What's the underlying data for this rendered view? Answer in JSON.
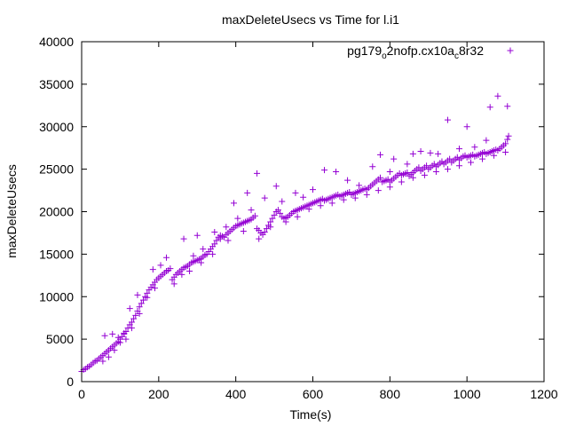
{
  "chart_data": {
    "type": "scatter",
    "title": "maxDeleteUsecs vs Time for l.i1",
    "xlabel": "Time(s)",
    "ylabel": "maxDeleteUsecs",
    "xlim": [
      0,
      1200
    ],
    "ylim": [
      0,
      40000
    ],
    "xticks": [
      "0",
      "200",
      "400",
      "600",
      "800",
      "1000",
      "1200"
    ],
    "yticks": [
      "0",
      "5000",
      "10000",
      "15000",
      "20000",
      "25000",
      "30000",
      "35000",
      "40000"
    ],
    "grid": false,
    "legend_position": "top-right",
    "marker": "plus",
    "series": [
      {
        "name_parts": [
          "pg179",
          "o",
          "2nofp.cx10a",
          "c",
          "8r32"
        ],
        "color": "#9400d3",
        "points": [
          [
            0,
            1200
          ],
          [
            5,
            1400
          ],
          [
            10,
            1500
          ],
          [
            15,
            1700
          ],
          [
            20,
            1800
          ],
          [
            25,
            2000
          ],
          [
            30,
            2200
          ],
          [
            35,
            2400
          ],
          [
            40,
            2500
          ],
          [
            45,
            2700
          ],
          [
            50,
            2900
          ],
          [
            55,
            3100
          ],
          [
            60,
            3300
          ],
          [
            65,
            3500
          ],
          [
            70,
            3700
          ],
          [
            75,
            3900
          ],
          [
            80,
            4100
          ],
          [
            85,
            4300
          ],
          [
            90,
            4500
          ],
          [
            95,
            4700
          ],
          [
            100,
            5000
          ],
          [
            105,
            5300
          ],
          [
            110,
            5600
          ],
          [
            115,
            5900
          ],
          [
            120,
            6300
          ],
          [
            125,
            6700
          ],
          [
            130,
            7000
          ],
          [
            135,
            7400
          ],
          [
            140,
            7800
          ],
          [
            145,
            8300
          ],
          [
            150,
            8800
          ],
          [
            155,
            9200
          ],
          [
            160,
            9600
          ],
          [
            165,
            10000
          ],
          [
            170,
            10400
          ],
          [
            175,
            10800
          ],
          [
            180,
            11100
          ],
          [
            185,
            11400
          ],
          [
            190,
            11700
          ],
          [
            195,
            12000
          ],
          [
            200,
            12200
          ],
          [
            205,
            12400
          ],
          [
            210,
            12600
          ],
          [
            215,
            12800
          ],
          [
            220,
            13000
          ],
          [
            225,
            13100
          ],
          [
            230,
            13300
          ],
          [
            235,
            12000
          ],
          [
            240,
            12300
          ],
          [
            245,
            12600
          ],
          [
            250,
            12800
          ],
          [
            255,
            13000
          ],
          [
            260,
            13200
          ],
          [
            265,
            13400
          ],
          [
            270,
            13500
          ],
          [
            275,
            13600
          ],
          [
            280,
            13800
          ],
          [
            285,
            14000
          ],
          [
            290,
            14100
          ],
          [
            295,
            14200
          ],
          [
            300,
            14300
          ],
          [
            305,
            14400
          ],
          [
            310,
            14500
          ],
          [
            315,
            14700
          ],
          [
            320,
            14900
          ],
          [
            325,
            15000
          ],
          [
            330,
            15300
          ],
          [
            335,
            15600
          ],
          [
            340,
            15900
          ],
          [
            345,
            16200
          ],
          [
            350,
            16600
          ],
          [
            355,
            17000
          ],
          [
            360,
            17200
          ],
          [
            365,
            17100
          ],
          [
            370,
            17000
          ],
          [
            375,
            17300
          ],
          [
            380,
            17500
          ],
          [
            385,
            17700
          ],
          [
            390,
            17900
          ],
          [
            395,
            18100
          ],
          [
            400,
            18300
          ],
          [
            405,
            18400
          ],
          [
            410,
            18500
          ],
          [
            415,
            18600
          ],
          [
            420,
            18700
          ],
          [
            425,
            18800
          ],
          [
            430,
            18900
          ],
          [
            435,
            19000
          ],
          [
            440,
            19100
          ],
          [
            445,
            19300
          ],
          [
            450,
            19500
          ],
          [
            455,
            18000
          ],
          [
            460,
            17800
          ],
          [
            465,
            17500
          ],
          [
            470,
            17300
          ],
          [
            475,
            17600
          ],
          [
            480,
            18000
          ],
          [
            485,
            18400
          ],
          [
            490,
            18800
          ],
          [
            495,
            19200
          ],
          [
            500,
            19600
          ],
          [
            505,
            20000
          ],
          [
            510,
            20200
          ],
          [
            515,
            19800
          ],
          [
            520,
            19400
          ],
          [
            525,
            19200
          ],
          [
            530,
            19300
          ],
          [
            535,
            19400
          ],
          [
            540,
            19600
          ],
          [
            545,
            19800
          ],
          [
            550,
            20000
          ],
          [
            555,
            20100
          ],
          [
            560,
            20200
          ],
          [
            565,
            20300
          ],
          [
            570,
            20400
          ],
          [
            575,
            20500
          ],
          [
            580,
            20600
          ],
          [
            585,
            20700
          ],
          [
            590,
            20800
          ],
          [
            595,
            20900
          ],
          [
            600,
            21000
          ],
          [
            605,
            21100
          ],
          [
            610,
            21200
          ],
          [
            615,
            21300
          ],
          [
            620,
            21400
          ],
          [
            625,
            21500
          ],
          [
            630,
            21300
          ],
          [
            635,
            21400
          ],
          [
            640,
            21500
          ],
          [
            645,
            21600
          ],
          [
            650,
            21700
          ],
          [
            655,
            21800
          ],
          [
            660,
            21900
          ],
          [
            665,
            22000
          ],
          [
            670,
            21800
          ],
          [
            675,
            21900
          ],
          [
            680,
            22000
          ],
          [
            685,
            22100
          ],
          [
            690,
            22200
          ],
          [
            695,
            22300
          ],
          [
            700,
            22000
          ],
          [
            705,
            22100
          ],
          [
            710,
            22200
          ],
          [
            715,
            22300
          ],
          [
            720,
            22400
          ],
          [
            725,
            22500
          ],
          [
            730,
            22600
          ],
          [
            735,
            22700
          ],
          [
            740,
            22600
          ],
          [
            745,
            22800
          ],
          [
            750,
            23000
          ],
          [
            755,
            23200
          ],
          [
            760,
            23400
          ],
          [
            765,
            23600
          ],
          [
            770,
            23800
          ],
          [
            775,
            24000
          ],
          [
            780,
            23500
          ],
          [
            785,
            23600
          ],
          [
            790,
            23700
          ],
          [
            795,
            23800
          ],
          [
            800,
            23500
          ],
          [
            805,
            23700
          ],
          [
            810,
            23900
          ],
          [
            815,
            24100
          ],
          [
            820,
            24300
          ],
          [
            825,
            24500
          ],
          [
            830,
            24300
          ],
          [
            835,
            24400
          ],
          [
            840,
            24500
          ],
          [
            845,
            24600
          ],
          [
            850,
            24200
          ],
          [
            855,
            24400
          ],
          [
            860,
            24600
          ],
          [
            865,
            24800
          ],
          [
            870,
            25000
          ],
          [
            875,
            25200
          ],
          [
            880,
            24800
          ],
          [
            885,
            25000
          ],
          [
            890,
            25200
          ],
          [
            895,
            25400
          ],
          [
            900,
            25000
          ],
          [
            905,
            25200
          ],
          [
            910,
            25400
          ],
          [
            915,
            25600
          ],
          [
            920,
            25300
          ],
          [
            925,
            25500
          ],
          [
            930,
            25700
          ],
          [
            935,
            25900
          ],
          [
            940,
            25600
          ],
          [
            945,
            25800
          ],
          [
            950,
            26000
          ],
          [
            955,
            26200
          ],
          [
            960,
            25800
          ],
          [
            965,
            26000
          ],
          [
            970,
            26200
          ],
          [
            975,
            26400
          ],
          [
            980,
            26100
          ],
          [
            985,
            26300
          ],
          [
            990,
            26500
          ],
          [
            995,
            26600
          ],
          [
            1000,
            26400
          ],
          [
            1005,
            26500
          ],
          [
            1010,
            26600
          ],
          [
            1015,
            26700
          ],
          [
            1020,
            26500
          ],
          [
            1025,
            26600
          ],
          [
            1030,
            26700
          ],
          [
            1035,
            26800
          ],
          [
            1040,
            26900
          ],
          [
            1045,
            27000
          ],
          [
            1050,
            26800
          ],
          [
            1055,
            26900
          ],
          [
            1060,
            27000
          ],
          [
            1065,
            27100
          ],
          [
            1070,
            27200
          ],
          [
            1075,
            27300
          ],
          [
            1080,
            27200
          ],
          [
            1085,
            27400
          ],
          [
            1090,
            27600
          ],
          [
            1095,
            27800
          ],
          [
            1100,
            28000
          ],
          [
            1105,
            28500
          ],
          [
            1108,
            28900
          ],
          [
            60,
            5400
          ],
          [
            80,
            5600
          ],
          [
            95,
            5200
          ],
          [
            110,
            5700
          ],
          [
            125,
            8600
          ],
          [
            145,
            10200
          ],
          [
            185,
            13200
          ],
          [
            205,
            13700
          ],
          [
            220,
            14600
          ],
          [
            265,
            16800
          ],
          [
            290,
            14800
          ],
          [
            300,
            17200
          ],
          [
            315,
            15600
          ],
          [
            345,
            17600
          ],
          [
            375,
            18200
          ],
          [
            395,
            21000
          ],
          [
            405,
            19200
          ],
          [
            430,
            22200
          ],
          [
            440,
            20200
          ],
          [
            455,
            24500
          ],
          [
            475,
            21600
          ],
          [
            505,
            23000
          ],
          [
            520,
            21200
          ],
          [
            555,
            22200
          ],
          [
            575,
            21700
          ],
          [
            600,
            22600
          ],
          [
            630,
            24900
          ],
          [
            660,
            24700
          ],
          [
            690,
            23700
          ],
          [
            720,
            23100
          ],
          [
            755,
            25300
          ],
          [
            775,
            26700
          ],
          [
            800,
            24700
          ],
          [
            810,
            26200
          ],
          [
            845,
            25600
          ],
          [
            860,
            26800
          ],
          [
            880,
            27100
          ],
          [
            905,
            26900
          ],
          [
            925,
            26800
          ],
          [
            950,
            30800
          ],
          [
            980,
            27400
          ],
          [
            1000,
            30000
          ],
          [
            1020,
            27600
          ],
          [
            1050,
            28400
          ],
          [
            1060,
            32300
          ],
          [
            1080,
            33600
          ],
          [
            1105,
            32400
          ],
          [
            55,
            2400
          ],
          [
            70,
            2900
          ],
          [
            85,
            3700
          ],
          [
            100,
            4600
          ],
          [
            115,
            5000
          ],
          [
            130,
            6300
          ],
          [
            150,
            8000
          ],
          [
            170,
            9900
          ],
          [
            190,
            11000
          ],
          [
            240,
            11500
          ],
          [
            260,
            12600
          ],
          [
            280,
            13000
          ],
          [
            310,
            14000
          ],
          [
            340,
            15000
          ],
          [
            360,
            16800
          ],
          [
            380,
            16600
          ],
          [
            420,
            17700
          ],
          [
            460,
            16800
          ],
          [
            490,
            18200
          ],
          [
            530,
            18800
          ],
          [
            560,
            19400
          ],
          [
            590,
            20300
          ],
          [
            620,
            20700
          ],
          [
            650,
            21000
          ],
          [
            680,
            21400
          ],
          [
            710,
            21600
          ],
          [
            740,
            22000
          ],
          [
            770,
            22500
          ],
          [
            800,
            22900
          ],
          [
            830,
            23500
          ],
          [
            860,
            24000
          ],
          [
            890,
            24300
          ],
          [
            920,
            24700
          ],
          [
            950,
            25000
          ],
          [
            980,
            25400
          ],
          [
            1010,
            25800
          ],
          [
            1040,
            26200
          ],
          [
            1070,
            26600
          ],
          [
            1100,
            27000
          ]
        ]
      }
    ]
  }
}
